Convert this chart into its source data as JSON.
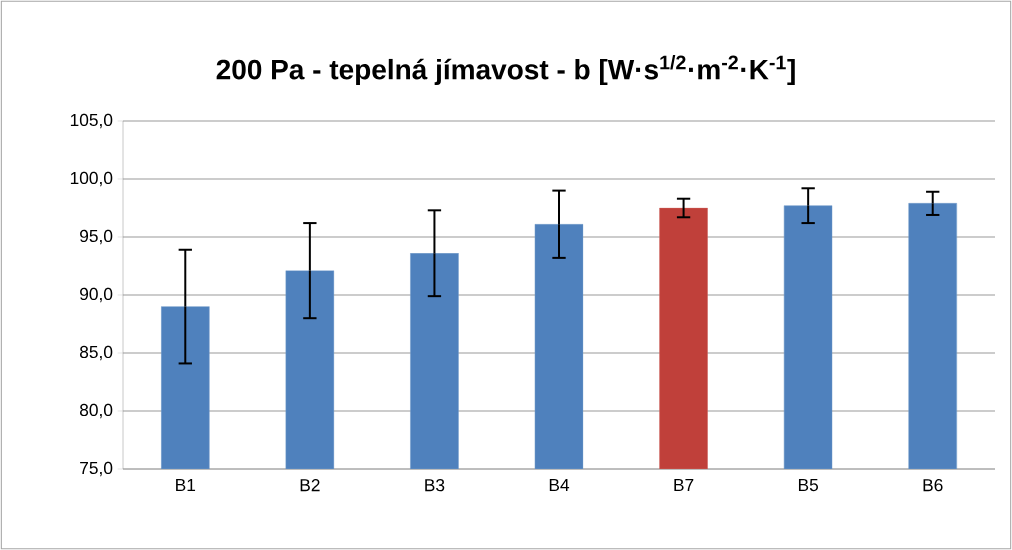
{
  "chart_data": {
    "type": "bar",
    "title": "200 Pa - tepelná jímavost - b [W·s$^{1/2}$·m$^{-2}$·K$^{-1}$]",
    "categories": [
      "B1",
      "B2",
      "B3",
      "B4",
      "B7",
      "B5",
      "B6"
    ],
    "values": [
      89.0,
      92.1,
      93.6,
      96.1,
      97.5,
      97.7,
      97.9
    ],
    "errors": [
      4.9,
      4.1,
      3.7,
      2.9,
      0.8,
      1.5,
      1.0
    ],
    "colors": [
      "#4f81bd",
      "#4f81bd",
      "#4f81bd",
      "#4f81bd",
      "#c0403a",
      "#4f81bd",
      "#4f81bd"
    ],
    "ylim": [
      75,
      105
    ],
    "yticks": [
      {
        "value": 75,
        "label": "75,0"
      },
      {
        "value": 80,
        "label": "80,0"
      },
      {
        "value": 85,
        "label": "85,0"
      },
      {
        "value": 90,
        "label": "90,0"
      },
      {
        "value": 95,
        "label": "95,0"
      },
      {
        "value": 100,
        "label": "100,0"
      },
      {
        "value": 105,
        "label": "105,0"
      }
    ],
    "grid": "y"
  }
}
